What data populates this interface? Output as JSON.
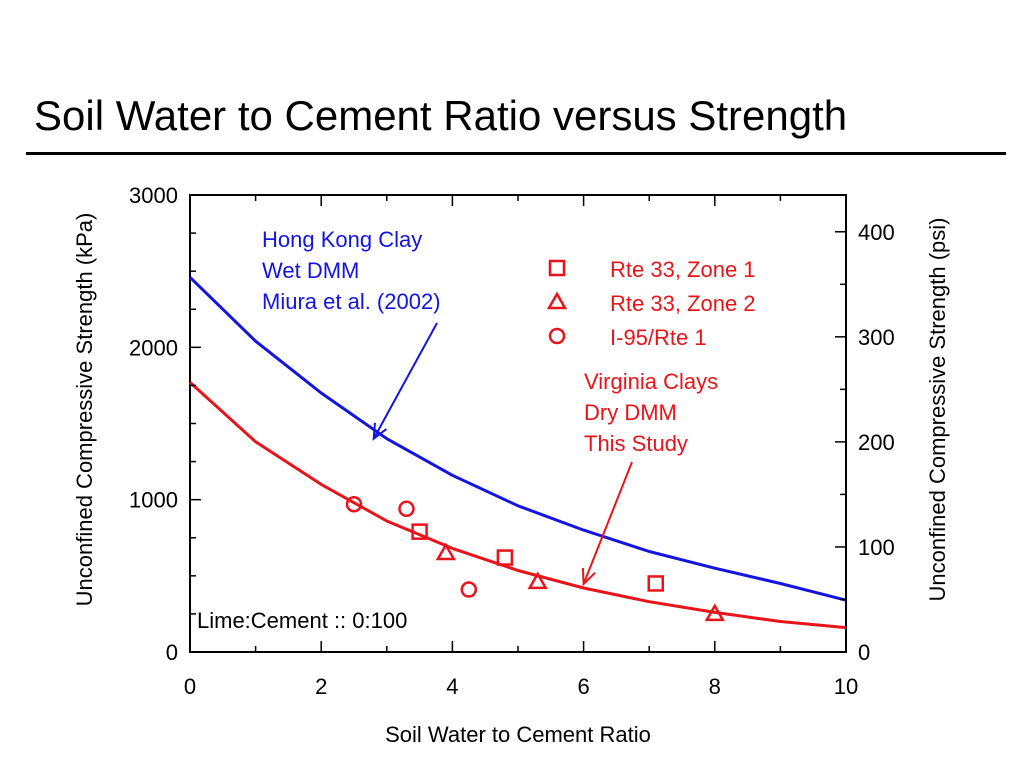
{
  "slide": {
    "title": "Soil Water to Cement Ratio versus Strength"
  },
  "chart_data": {
    "type": "scatter",
    "xlabel": "Soil Water to Cement Ratio",
    "ylabel": "Unconfined Compressive Strength (kPa)",
    "y2label": "Unconfined Compressive Strength (psi)",
    "xlim": [
      0,
      10
    ],
    "ylim": [
      0,
      3000
    ],
    "y2lim": [
      0,
      435
    ],
    "x_ticks": [
      "0",
      "2",
      "4",
      "6",
      "8",
      "10"
    ],
    "y_ticks": [
      "0",
      "1000",
      "2000",
      "3000"
    ],
    "y2_ticks": [
      "0",
      "100",
      "200",
      "300",
      "400"
    ],
    "grid": false,
    "legend_position": "top-right",
    "series": [
      {
        "name": "Rte 33, Zone 1",
        "marker": "square",
        "color": "#e8141a",
        "points": [
          [
            3.5,
            790
          ],
          [
            4.8,
            620
          ],
          [
            7.1,
            450
          ]
        ]
      },
      {
        "name": "Rte 33, Zone 2",
        "marker": "triangle",
        "color": "#e8141a",
        "points": [
          [
            3.9,
            650
          ],
          [
            5.3,
            460
          ],
          [
            8.0,
            250
          ]
        ]
      },
      {
        "name": "I-95/Rte 1",
        "marker": "circle",
        "color": "#e8141a",
        "points": [
          [
            2.5,
            970
          ],
          [
            3.3,
            940
          ],
          [
            4.25,
            410
          ]
        ]
      }
    ],
    "curves": [
      {
        "label": "Hong Kong Clay Wet DMM Miura et al. (2002)",
        "color": "#1414e0",
        "points": [
          [
            0,
            2460
          ],
          [
            1,
            2040
          ],
          [
            2,
            1700
          ],
          [
            3,
            1400
          ],
          [
            4,
            1160
          ],
          [
            5,
            960
          ],
          [
            6,
            800
          ],
          [
            7,
            660
          ],
          [
            8,
            550
          ],
          [
            9,
            450
          ],
          [
            10,
            340
          ]
        ]
      },
      {
        "label": "Virginia Clays Dry DMM This Study",
        "color": "#e8141a",
        "points": [
          [
            0,
            1770
          ],
          [
            1,
            1380
          ],
          [
            2,
            1100
          ],
          [
            3,
            860
          ],
          [
            4,
            680
          ],
          [
            5,
            535
          ],
          [
            6,
            420
          ],
          [
            7,
            330
          ],
          [
            8,
            260
          ],
          [
            9,
            200
          ],
          [
            10,
            160
          ]
        ]
      }
    ],
    "annotations": {
      "hong_kong": [
        "Hong Kong Clay",
        "Wet DMM",
        "Miura et al. (2002)"
      ],
      "virginia": [
        "Virginia Clays",
        "Dry DMM",
        "This Study"
      ],
      "lime_cement": "Lime:Cement :: 0:100"
    },
    "annotation_targets": {
      "hong_kong": [
        2.8,
        1400
      ],
      "virginia": [
        6.0,
        420
      ]
    }
  }
}
